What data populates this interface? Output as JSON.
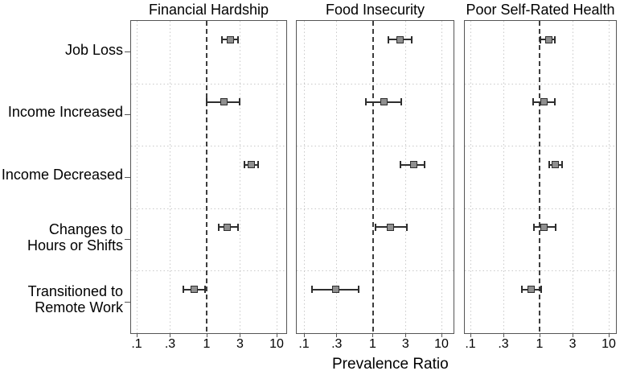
{
  "figure": {
    "xlabel": "Prevalence Ratio"
  },
  "chart_data": {
    "type": "scatter",
    "subtype": "forest-plot-dot-whisker",
    "orientation": "horizontal",
    "xscale": "log",
    "xlabel": "Prevalence Ratio",
    "xtick_labels": [
      ".1",
      ".3",
      "1",
      "3",
      "10"
    ],
    "xtick_values": [
      0.1,
      0.3,
      1,
      3,
      10
    ],
    "xlim": [
      0.08,
      13
    ],
    "ref_line": 1,
    "grid": true,
    "legend": "none",
    "categories": [
      "Job Loss",
      "Income Increased",
      "Income Decreased",
      "Changes to\nHours or Shifts",
      "Transitioned to\nRemote Work"
    ],
    "panels": [
      {
        "title": "Financial Hardship",
        "points": [
          {
            "category": "Job Loss",
            "pr": 2.2,
            "ci_low": 1.65,
            "ci_high": 2.8
          },
          {
            "category": "Income Increased",
            "pr": 1.75,
            "ci_low": 1.0,
            "ci_high": 2.95
          },
          {
            "category": "Income Decreased",
            "pr": 4.35,
            "ci_low": 3.45,
            "ci_high": 5.5
          },
          {
            "category": "Changes to Hours or Shifts",
            "pr": 1.95,
            "ci_low": 1.5,
            "ci_high": 2.8
          },
          {
            "category": "Transitioned to Remote Work",
            "pr": 0.67,
            "ci_low": 0.46,
            "ci_high": 0.95
          }
        ]
      },
      {
        "title": "Food Insecurity",
        "points": [
          {
            "category": "Job Loss",
            "pr": 2.5,
            "ci_low": 1.7,
            "ci_high": 3.7
          },
          {
            "category": "Income Increased",
            "pr": 1.45,
            "ci_low": 0.8,
            "ci_high": 2.6
          },
          {
            "category": "Income Decreased",
            "pr": 3.9,
            "ci_low": 2.5,
            "ci_high": 5.7
          },
          {
            "category": "Changes to Hours or Shifts",
            "pr": 1.8,
            "ci_low": 1.1,
            "ci_high": 3.1
          },
          {
            "category": "Transitioned to Remote Work",
            "pr": 0.29,
            "ci_low": 0.13,
            "ci_high": 0.62
          }
        ]
      },
      {
        "title": "Poor Self-Rated Health",
        "points": [
          {
            "category": "Job Loss",
            "pr": 1.35,
            "ci_low": 1.03,
            "ci_high": 1.65
          },
          {
            "category": "Income Increased",
            "pr": 1.15,
            "ci_low": 0.81,
            "ci_high": 1.65
          },
          {
            "category": "Income Decreased",
            "pr": 1.7,
            "ci_low": 1.38,
            "ci_high": 2.1
          },
          {
            "category": "Changes to Hours or Shifts",
            "pr": 1.17,
            "ci_low": 0.83,
            "ci_high": 1.7
          },
          {
            "category": "Transitioned to Remote Work",
            "pr": 0.75,
            "ci_low": 0.55,
            "ci_high": 1.05
          }
        ]
      }
    ],
    "colors": {
      "marker_fill": "#8f8f8f",
      "marker_border": "#2e2e2e",
      "error_bar": "#2e2e2e",
      "ref_line": "#3d3d3d",
      "grid": "#c9c9c9",
      "panel_border": "#555555",
      "text": "#000000",
      "background": "#ffffff"
    }
  }
}
